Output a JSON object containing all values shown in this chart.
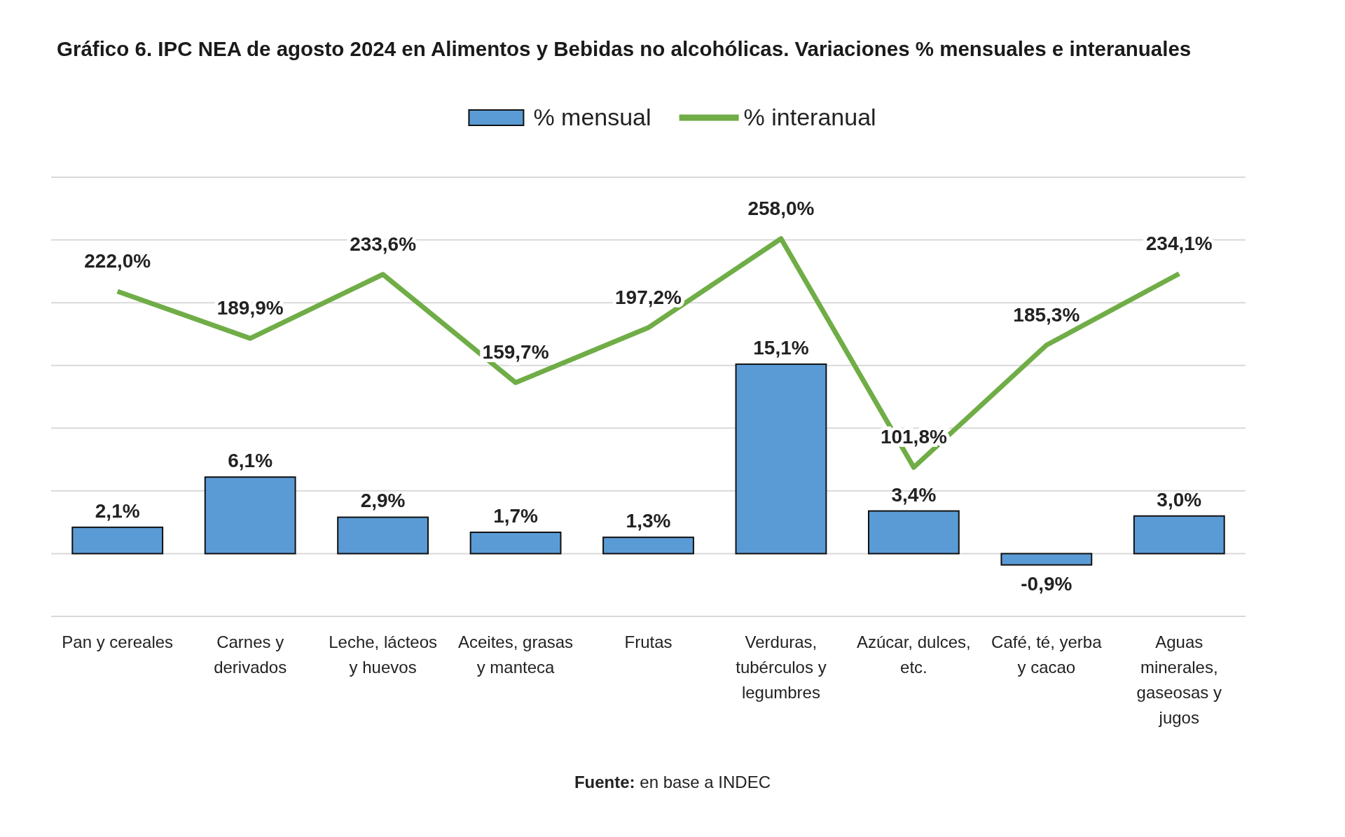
{
  "chart_data": {
    "type": "bar",
    "title": "Gráfico 6. IPC NEA de agosto 2024 en Alimentos y Bebidas no alcohólicas. Variaciones % mensuales e interanuales",
    "categories": [
      "Pan y cereales",
      "Carnes y derivados",
      "Leche, lácteos y huevos",
      "Aceites, grasas y manteca",
      "Frutas",
      "Verduras, tubérculos y legumbres",
      "Azúcar, dulces, etc.",
      "Café, té, yerba y cacao",
      "Aguas minerales, gaseosas y jugos"
    ],
    "series": [
      {
        "name": "% mensual",
        "color": "#5b9bd5",
        "values": [
          2.1,
          6.1,
          2.9,
          1.7,
          1.3,
          15.1,
          3.4,
          -0.9,
          3.0
        ],
        "value_labels": [
          "2,1%",
          "6,1%",
          "2,9%",
          "1,7%",
          "1,3%",
          "15,1%",
          "3,4%",
          "-0,9%",
          "3,0%"
        ]
      },
      {
        "name": "% interanual",
        "type": "line",
        "axis": "y2",
        "color": "#70ad47",
        "values": [
          222.0,
          189.9,
          233.6,
          159.7,
          197.2,
          258.0,
          101.8,
          185.3,
          234.1
        ],
        "value_labels": [
          "222,0%",
          "189,9%",
          "233,6%",
          "159,7%",
          "197,2%",
          "258,0%",
          "101,8%",
          "185,3%",
          "234,1%"
        ]
      }
    ],
    "ylim": [
      -5,
      30
    ],
    "yticks": [
      {
        "value": -5,
        "label": null
      },
      {
        "value": 0,
        "label": null
      },
      {
        "value": 5,
        "label": null
      },
      {
        "value": 10,
        "label": null
      },
      {
        "value": 15,
        "label": null
      },
      {
        "value": 20,
        "label": null
      },
      {
        "value": 25,
        "label": null
      },
      {
        "value": 30,
        "label": null
      }
    ],
    "y2lim": [
      0,
      300
    ],
    "tick_labels": "x",
    "grid": "y",
    "legend": "top",
    "marker": "none",
    "line_style": "solid",
    "annotations": [
      "Fuente: en base a INDEC"
    ]
  }
}
